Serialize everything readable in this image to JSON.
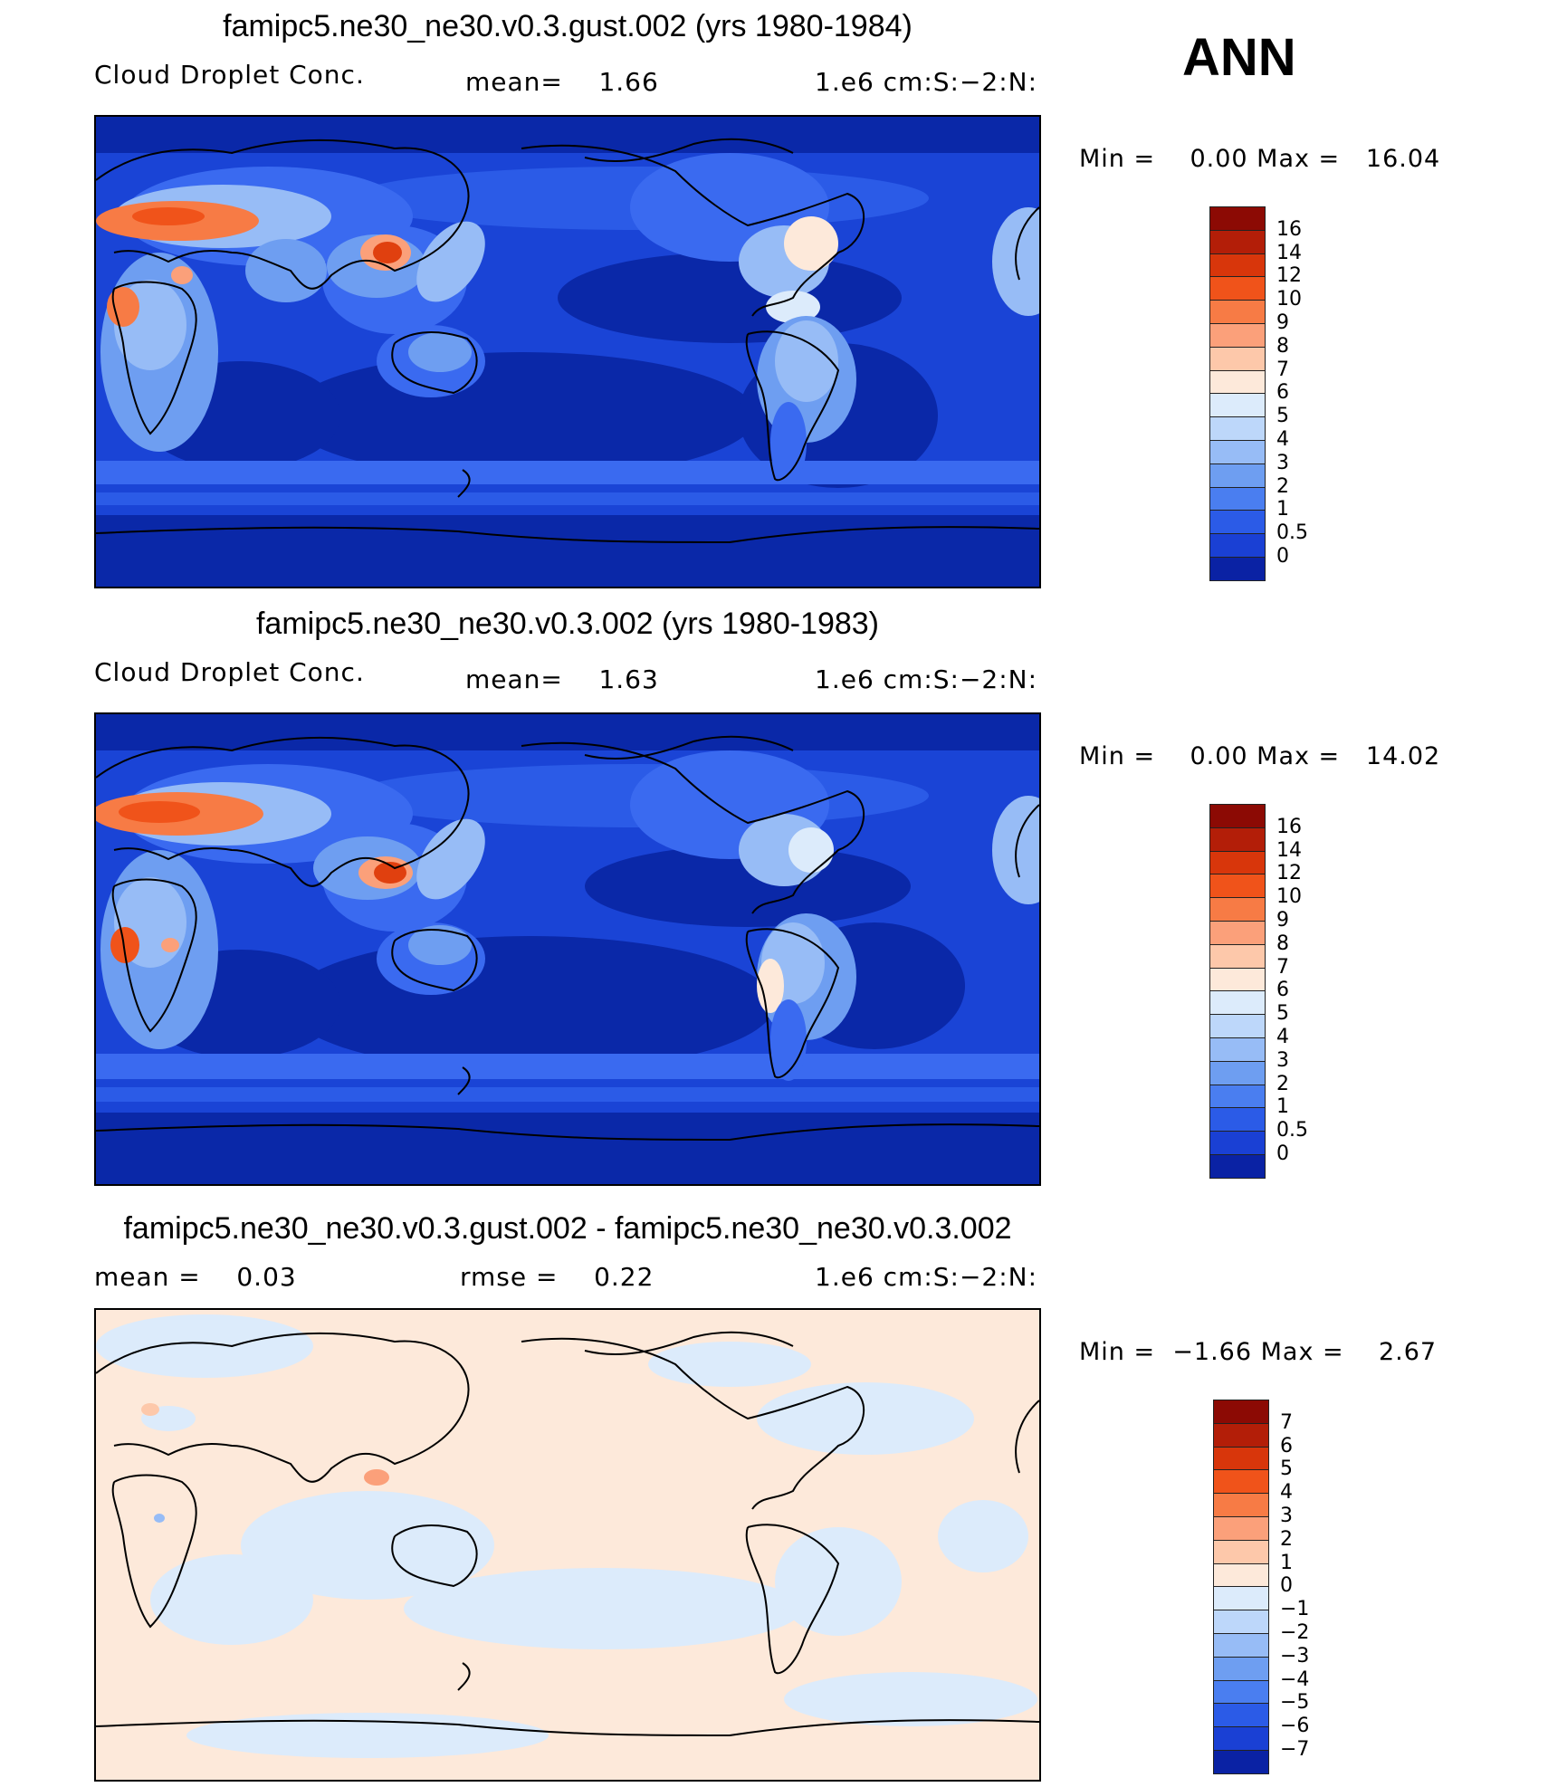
{
  "season": "ANN",
  "panels": [
    {
      "title": "famipc5.ne30_ne30.v0.3.gust.002 (yrs 1980-1984)",
      "left_text": "Cloud Droplet Conc.",
      "mid_text": "mean=    1.66",
      "right_text": "1.e6 cm:S:−2:N:",
      "minmax": "Min =    0.00 Max =   16.04",
      "colorbar": {
        "labels": [
          "16",
          "14",
          "12",
          "10",
          "9",
          "8",
          "7",
          "6",
          "5",
          "4",
          "3",
          "2",
          "1",
          "0.5",
          "0"
        ],
        "colors": [
          "#8c0a04",
          "#b31e08",
          "#d8360b",
          "#f0531a",
          "#f77b45",
          "#fba07a",
          "#fdc8aa",
          "#fde9da",
          "#dcebfb",
          "#bdd7fa",
          "#97bcf6",
          "#6e9ef1",
          "#4a7ef0",
          "#2b5be7",
          "#1a40d4",
          "#0a22a4"
        ]
      }
    },
    {
      "title": "famipc5.ne30_ne30.v0.3.002 (yrs 1980-1983)",
      "left_text": "Cloud Droplet Conc.",
      "mid_text": "mean=    1.63",
      "right_text": "1.e6 cm:S:−2:N:",
      "minmax": "Min =    0.00 Max =   14.02",
      "colorbar": {
        "labels": [
          "16",
          "14",
          "12",
          "10",
          "9",
          "8",
          "7",
          "6",
          "5",
          "4",
          "3",
          "2",
          "1",
          "0.5",
          "0"
        ],
        "colors": [
          "#8c0a04",
          "#b31e08",
          "#d8360b",
          "#f0531a",
          "#f77b45",
          "#fba07a",
          "#fdc8aa",
          "#fde9da",
          "#dcebfb",
          "#bdd7fa",
          "#97bcf6",
          "#6e9ef1",
          "#4a7ef0",
          "#2b5be7",
          "#1a40d4",
          "#0a22a4"
        ]
      }
    },
    {
      "title": "famipc5.ne30_ne30.v0.3.gust.002 - famipc5.ne30_ne30.v0.3.002",
      "left_text": "mean =    0.03",
      "mid_text": "rmse =    0.22",
      "right_text": "1.e6 cm:S:−2:N:",
      "minmax": "Min =  −1.66 Max =    2.67",
      "colorbar": {
        "labels": [
          "7",
          "6",
          "5",
          "4",
          "3",
          "2",
          "1",
          "0",
          "−1",
          "−2",
          "−3",
          "−4",
          "−5",
          "−6",
          "−7"
        ],
        "colors": [
          "#8c0a04",
          "#b31e08",
          "#d8360b",
          "#f0531a",
          "#f77b45",
          "#fba07a",
          "#fdc8aa",
          "#fde9da",
          "#dcebfb",
          "#bdd7fa",
          "#97bcf6",
          "#6e9ef1",
          "#4a7ef0",
          "#2b5be7",
          "#1a40d4",
          "#0a22a4"
        ]
      }
    }
  ],
  "colors": {
    "ocean_deep": "#0a28a8",
    "ocean_mid": "#1a44d6",
    "ocean_light": "#3a6af0",
    "land_light": "#9cbcf7",
    "land_pale": "#d8e6fb",
    "high_orange": "#f77b45",
    "high_red": "#e0400f",
    "diff_pos": "#fde9da",
    "diff_neg": "#dcebfb"
  }
}
